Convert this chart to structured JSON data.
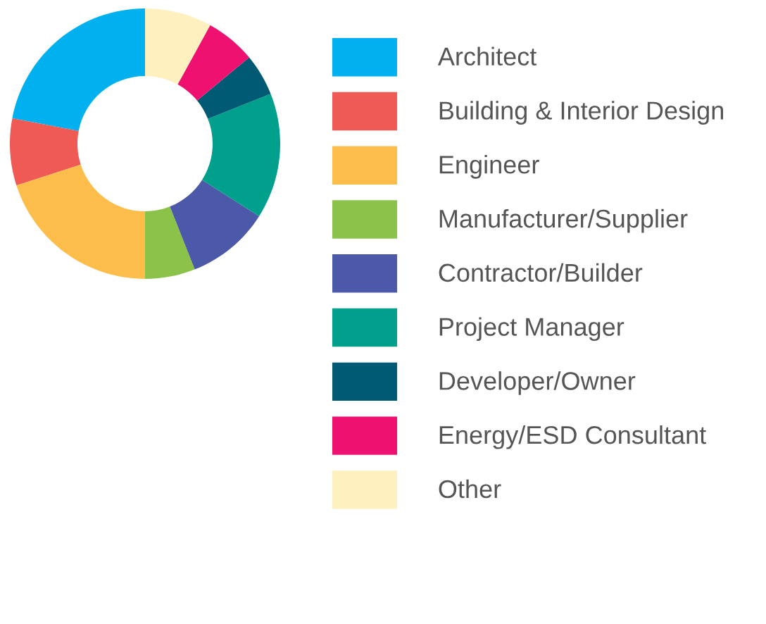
{
  "chart_data": {
    "type": "donut",
    "categories": [
      "Architect",
      "Building & Interior Design",
      "Engineer",
      "Manufacturer/Supplier",
      "Contractor/Builder",
      "Project Manager",
      "Developer/Owner",
      "Energy/ESD Consultant",
      "Other"
    ],
    "values": [
      22,
      8,
      20,
      6,
      10,
      15,
      5,
      6,
      8
    ],
    "colors": [
      "#00b0ef",
      "#f05a55",
      "#fdbd4a",
      "#8bc34a",
      "#4c58a8",
      "#00a08c",
      "#005a73",
      "#ee1170",
      "#fff0c0"
    ],
    "legend": "right"
  }
}
